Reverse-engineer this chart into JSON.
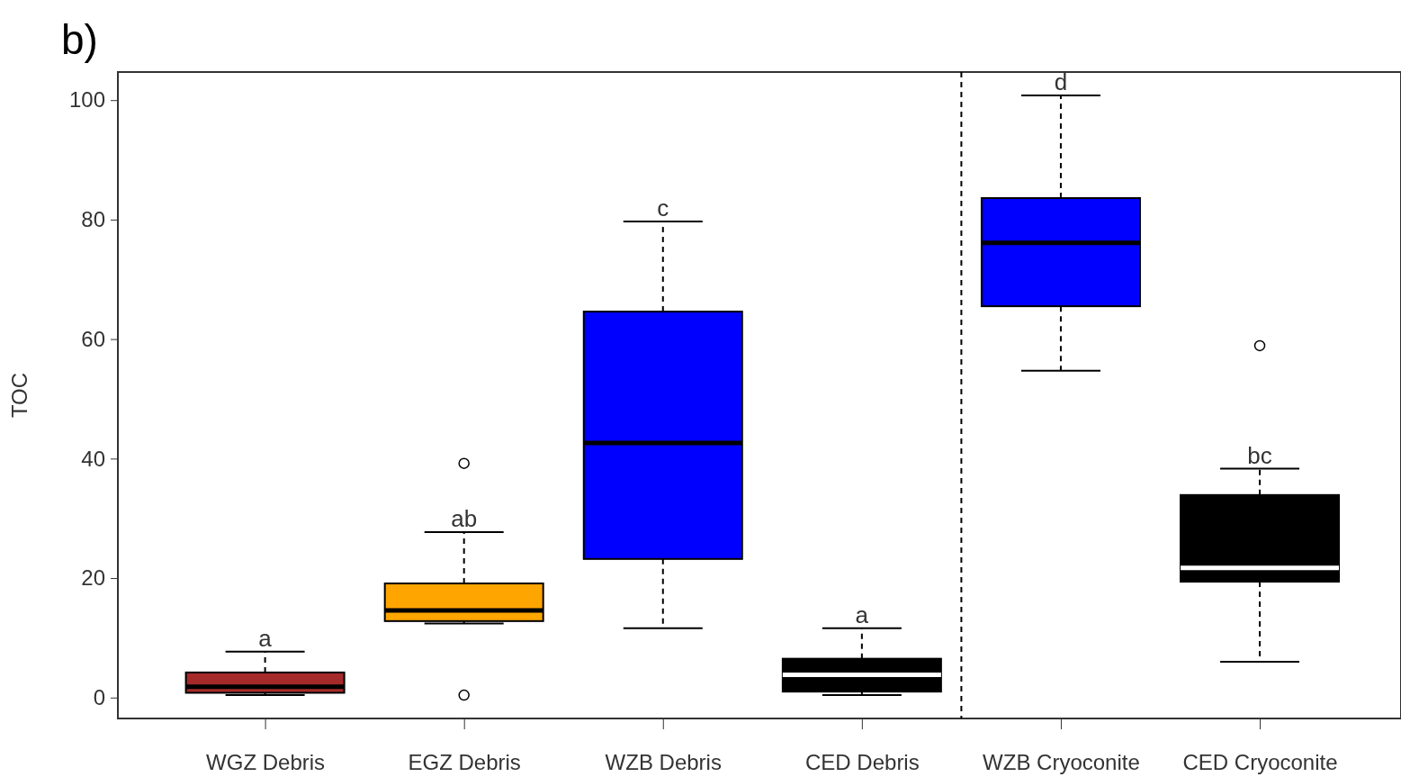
{
  "chart_data": {
    "type": "box",
    "title": "b)",
    "ylabel": "TOC",
    "categories": [
      "WGZ Debris",
      "EGZ Debris",
      "WZB Debris",
      "CED Debris",
      "WZB Cryoconite",
      "CED Cryoconite"
    ],
    "colors": [
      "#a52a2a",
      "#ffa500",
      "#0000ff",
      "#000000",
      "#0000ff",
      "#000000"
    ],
    "boxes": [
      {
        "low": 0.4,
        "q1": 0.8,
        "median": 1.8,
        "q3": 4.2,
        "high": 7.7
      },
      {
        "low": 12.4,
        "q1": 12.8,
        "median": 14.6,
        "q3": 19.1,
        "high": 27.7,
        "outliers": [
          39.2,
          0.4
        ]
      },
      {
        "low": 11.6,
        "q1": 23.2,
        "median": 42.6,
        "q3": 64.6,
        "high": 79.7
      },
      {
        "low": 0.4,
        "q1": 1.0,
        "median": 3.8,
        "q3": 6.5,
        "high": 11.6
      },
      {
        "low": 54.7,
        "q1": 65.5,
        "median": 76.1,
        "q3": 83.6,
        "high": 100.8
      },
      {
        "low": 6.0,
        "q1": 19.4,
        "median": 21.7,
        "q3": 33.9,
        "high": 38.3,
        "outliers": [
          58.9
        ]
      }
    ],
    "ylim": [
      -3.5,
      104.7
    ],
    "yticks": [
      0,
      20,
      40,
      60,
      80,
      100
    ],
    "grid": false,
    "annotations": [
      {
        "text": "a",
        "x": "WGZ Debris",
        "y": 7.7
      },
      {
        "text": "ab",
        "x": "EGZ Debris",
        "y": 27.7
      },
      {
        "text": "c",
        "x": "WZB Debris",
        "y": 79.7
      },
      {
        "text": "a",
        "x": "CED Debris",
        "y": 11.6
      },
      {
        "text": "d",
        "x": "WZB Cryoconite",
        "y": 100.8
      },
      {
        "text": "bc",
        "x": "CED Cryoconite",
        "y": 38.3
      }
    ]
  }
}
